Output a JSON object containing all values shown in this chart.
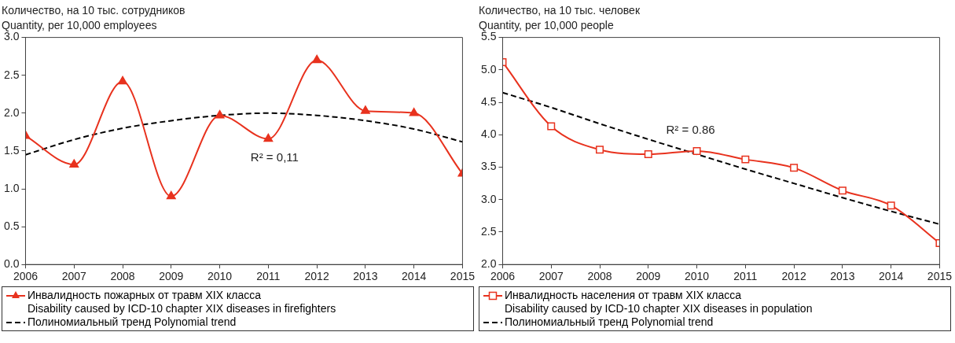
{
  "chart_data": [
    {
      "type": "line",
      "title": "Количество, на 10 тыс. сотрудников",
      "subtitle": "Quantity, per 10,000 employees",
      "x": [
        2006,
        2007,
        2008,
        2009,
        2010,
        2011,
        2012,
        2013,
        2014,
        2015
      ],
      "series": [
        {
          "name": "Инвалидность пожарных от травм XIX класса\nDisability caused by ICD-10 chapter XIX diseases in firefighters",
          "color": "#e8321e",
          "marker": "triangle",
          "line_style": "solid",
          "values": [
            1.7,
            1.32,
            2.42,
            0.9,
            1.97,
            1.66,
            2.7,
            2.03,
            2.0,
            1.2
          ]
        },
        {
          "name": "Полиномиальный тренд  Polynomial trend",
          "color": "#000000",
          "marker": "none",
          "line_style": "dashed",
          "values": [
            1.45,
            1.65,
            1.8,
            1.9,
            1.97,
            2.0,
            1.97,
            1.9,
            1.79,
            1.62
          ]
        }
      ],
      "xlim": [
        2006,
        2015
      ],
      "xticks": [
        2006,
        2007,
        2008,
        2009,
        2010,
        2011,
        2012,
        2013,
        2014,
        2015
      ],
      "ylim": [
        0,
        3
      ],
      "yticks": [
        {
          "value": 0,
          "label": "0.0"
        },
        0.5,
        {
          "value": 1,
          "label": "1.0"
        },
        1.5,
        {
          "value": 2,
          "label": "2.0"
        },
        2.5,
        {
          "value": 3,
          "label": "3.0"
        }
      ],
      "annotations": [
        "R² = 0,11"
      ],
      "legend": "bottom"
    },
    {
      "type": "line",
      "title": "Количество, на 10 тыс. человек",
      "subtitle": "Quantity, per 10,000 people",
      "x": [
        2006,
        2007,
        2008,
        2009,
        2010,
        2011,
        2012,
        2013,
        2014,
        2015
      ],
      "series": [
        {
          "name": "Инвалидность населения от травм XIX класса\nDisability caused by ICD-10 chapter XIX diseases in population",
          "color": "#e8321e",
          "marker": "square",
          "line_style": "solid",
          "values": [
            5.12,
            4.13,
            3.77,
            3.7,
            3.75,
            3.62,
            3.49,
            3.14,
            2.91,
            2.33
          ]
        },
        {
          "name": "Полиномиальный тренд  Polynomial trend",
          "color": "#000000",
          "marker": "none",
          "line_style": "dashed",
          "values": [
            4.65,
            4.42,
            4.17,
            3.93,
            3.7,
            3.47,
            3.25,
            3.03,
            2.82,
            2.62
          ]
        }
      ],
      "xlim": [
        2006,
        2015
      ],
      "xticks": [
        2006,
        2007,
        2008,
        2009,
        2010,
        2011,
        2012,
        2013,
        2014,
        2015
      ],
      "ylim": [
        2,
        5.5
      ],
      "yticks": [
        {
          "value": 2,
          "label": "2.0"
        },
        2.5,
        {
          "value": 3,
          "label": "3.0"
        },
        3.5,
        {
          "value": 4,
          "label": "4.0"
        },
        4.5,
        {
          "value": 5,
          "label": "5.0"
        },
        5.5
      ],
      "annotations": [
        "R² = 0.86"
      ],
      "legend": "bottom"
    }
  ]
}
